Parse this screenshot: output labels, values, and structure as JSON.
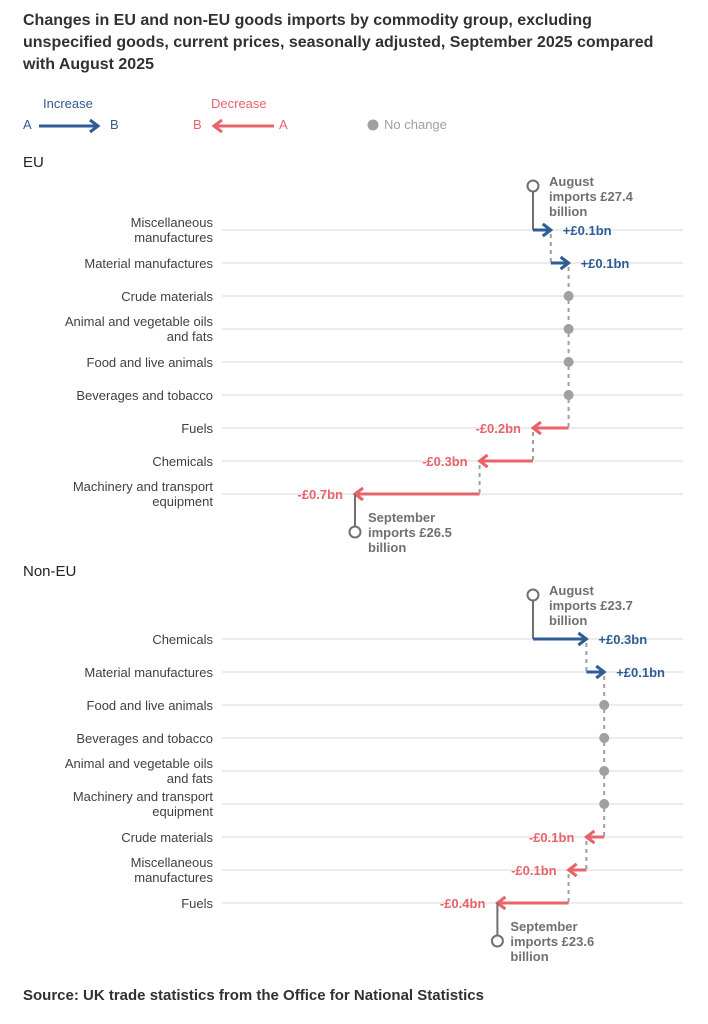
{
  "title": "Changes in EU and non-EU goods imports by commodity group, excluding unspecified goods, current prices, seasonally adjusted, September 2025 compared with August 2025",
  "legend": {
    "increase": {
      "label": "Increase",
      "from": "A",
      "to": "B",
      "color": "#2f5c94"
    },
    "decrease": {
      "label": "Decrease",
      "from": "B",
      "to": "A",
      "color": "#e8636a"
    },
    "no_change": {
      "label": "No change",
      "color": "#a0a0a0"
    }
  },
  "source": "Source: UK trade statistics from the Office for National Statistics",
  "chart_data": [
    {
      "type": "waterfall",
      "title": "EU",
      "unit": "£ billion",
      "start": {
        "label": "August imports £27.4 billion",
        "line1": "August",
        "line2": "imports £27.4",
        "line3": "billion",
        "value": 27.4
      },
      "end": {
        "label": "September imports £26.5 billion",
        "line1": "September",
        "line2": "imports £26.5",
        "line3": "billion",
        "value": 26.5
      },
      "categories": [
        "Miscellaneous manufactures",
        "Material manufactures",
        "Crude materials",
        "Animal and vegetable oils and fats",
        "Food and live animals",
        "Beverages and tobacco",
        "Fuels",
        "Chemicals",
        "Machinery and transport equipment"
      ],
      "category_lines": [
        [
          "Miscellaneous",
          "manufactures"
        ],
        [
          "Material manufactures"
        ],
        [
          "Crude materials"
        ],
        [
          "Animal and vegetable oils",
          "and fats"
        ],
        [
          "Food and live animals"
        ],
        [
          "Beverages and tobacco"
        ],
        [
          "Fuels"
        ],
        [
          "Chemicals"
        ],
        [
          "Machinery and transport",
          "equipment"
        ]
      ],
      "values": [
        0.1,
        0.1,
        0,
        0,
        0,
        0,
        -0.2,
        -0.3,
        -0.7
      ],
      "value_labels": [
        "+£0.1bn",
        "+£0.1bn",
        "",
        "",
        "",
        "",
        "-£0.2bn",
        "-£0.3bn",
        "-£0.7bn"
      ]
    },
    {
      "type": "waterfall",
      "title": "Non-EU",
      "unit": "£ billion",
      "start": {
        "label": "August imports £23.7 billion",
        "line1": "August",
        "line2": "imports £23.7",
        "line3": "billion",
        "value": 23.7
      },
      "end": {
        "label": "September imports £23.6 billion",
        "line1": "September",
        "line2": "imports £23.6",
        "line3": "billion",
        "value": 23.6
      },
      "categories": [
        "Chemicals",
        "Material manufactures",
        "Food and live animals",
        "Beverages and tobacco",
        "Animal and vegetable oils and fats",
        "Machinery and transport equipment",
        "Crude materials",
        "Miscellaneous manufactures",
        "Fuels"
      ],
      "category_lines": [
        [
          "Chemicals"
        ],
        [
          "Material manufactures"
        ],
        [
          "Food and live animals"
        ],
        [
          "Beverages and tobacco"
        ],
        [
          "Animal and vegetable oils",
          "and fats"
        ],
        [
          "Machinery and transport",
          "equipment"
        ],
        [
          "Crude materials"
        ],
        [
          "Miscellaneous",
          "manufactures"
        ],
        [
          "Fuels"
        ]
      ],
      "values": [
        0.3,
        0.1,
        0,
        0,
        0,
        0,
        -0.1,
        -0.1,
        -0.4
      ],
      "value_labels": [
        "+£0.3bn",
        "+£0.1bn",
        "",
        "",
        "",
        "",
        "-£0.1bn",
        "-£0.1bn",
        "-£0.4bn"
      ]
    }
  ]
}
